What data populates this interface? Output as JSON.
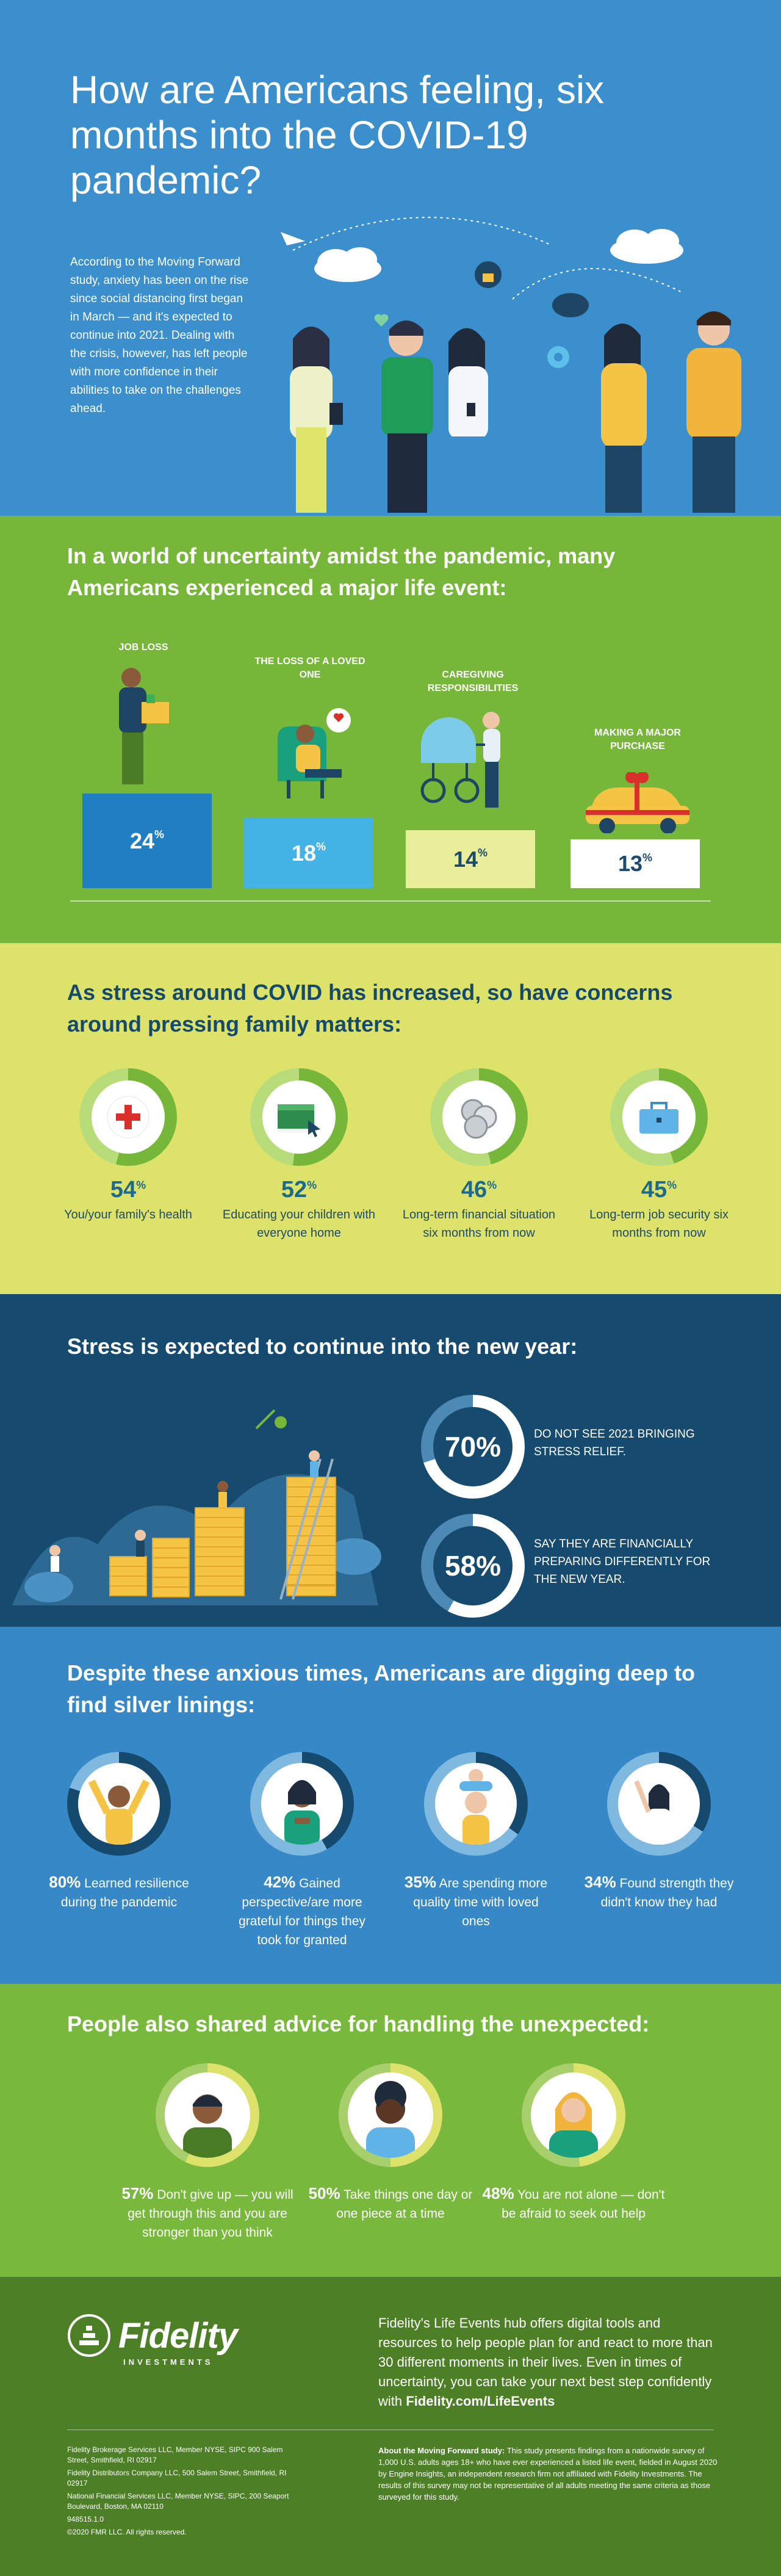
{
  "hero": {
    "title": "How are Americans feeling, six months into the COVID-19 pandemic?",
    "intro": "According to the Moving Forward study, anxiety has been on the rise since social distancing first began in March — and it's expected to continue into 2021. Dealing with the crisis, however, has left people with more confidence in their abilities to take on the challenges ahead."
  },
  "events": {
    "title_plain": "In a world of uncertainty amidst the pandemic, ",
    "title_bold": "many Americans experienced a major life event:",
    "items": [
      {
        "label": "JOB LOSS",
        "value": "24",
        "unit": "%"
      },
      {
        "label": "THE LOSS OF A LOVED ONE",
        "value": "18",
        "unit": "%"
      },
      {
        "label": "CAREGIVING RESPONSIBILITIES",
        "value": "14",
        "unit": "%"
      },
      {
        "label": "MAKING A MAJOR PURCHASE",
        "value": "13",
        "unit": "%"
      }
    ]
  },
  "concerns": {
    "title_plain": "As stress around COVID has increased, ",
    "title_bold": "so have concerns around pressing family matters:",
    "items": [
      {
        "value": "54",
        "unit": "%",
        "desc": "You/your family's health",
        "icon": "health-cross-icon"
      },
      {
        "value": "52",
        "unit": "%",
        "desc": "Educating your children with everyone home",
        "icon": "book-icon"
      },
      {
        "value": "46",
        "unit": "%",
        "desc": "Long-term financial situation six months from now",
        "icon": "coins-icon"
      },
      {
        "value": "45",
        "unit": "%",
        "desc": "Long-term job security six months from now",
        "icon": "briefcase-icon"
      }
    ]
  },
  "newyear": {
    "title_plain": "Stress is expected to continue ",
    "title_bold": "into the new year:",
    "stats": [
      {
        "value": "70%",
        "text": "DO NOT SEE 2021 BRINGING STRESS RELIEF."
      },
      {
        "value": "58%",
        "text": "SAY THEY ARE FINANCIALLY PREPARING DIFFERENTLY FOR THE NEW YEAR."
      }
    ]
  },
  "silver": {
    "title_plain": "Despite these anxious times, ",
    "title_bold": "Americans are digging deep to find silver linings:",
    "items": [
      {
        "value": "80%",
        "desc": "Learned resilience during the pandemic"
      },
      {
        "value": "42%",
        "desc": "Gained perspective/are more grateful for things they took for granted"
      },
      {
        "value": "35%",
        "desc": "Are spending more quality time with loved ones"
      },
      {
        "value": "34%",
        "desc": "Found strength they didn't know they had"
      }
    ]
  },
  "advice": {
    "title_plain": "People also shared ",
    "title_bold": "advice for handling the unexpected:",
    "items": [
      {
        "value": "57%",
        "desc": "Don't give up — you will get through this and you are stronger than you think"
      },
      {
        "value": "50%",
        "desc": "Take things one day or one piece at a time"
      },
      {
        "value": "48%",
        "desc": "You are not alone — don't be afraid to seek out help"
      }
    ]
  },
  "footer": {
    "logo_word": "Fidelity",
    "logo_sub": "INVESTMENTS",
    "blurb_plain": "Fidelity's Life Events hub offers digital tools and resources to help people plan for and react to more than 30 different moments in their lives. Even in times of uncertainty, you can take your next best step confidently with ",
    "blurb_link": "Fidelity.com/LifeEvents",
    "legal": [
      "Fidelity Brokerage Services LLC, Member NYSE, SIPC 900 Salem Street, Smithfield, RI 02917",
      "Fidelity Distributors Company LLC, 500 Salem Street, Smithfield, RI 02917",
      "National Financial Services LLC, Member NYSE, SIPC, 200 Seaport Boulevard, Boston, MA 02110",
      "948515.1.0",
      "©2020 FMR LLC. All rights reserved."
    ],
    "about_title": "About the Moving Forward study:",
    "about_text": " This study presents findings from a nationwide survey of 1,000 U.S. adults ages 18+ who have ever experienced a listed life event, fielded in August 2020 by Engine Insights, an independent research firm not affiliated with Fidelity Investments. The results of this survey may not be representative of all adults meeting the same criteria as those surveyed for this study."
  },
  "colors": {
    "hero_bg": "#3a8fcc",
    "green": "#76b73a",
    "lime": "#dde36a",
    "navy": "#164b6f",
    "blue": "#3688c6",
    "footer_green": "#4d7f27",
    "bar_blue": "#1f7fc2",
    "bar_light_blue": "#44b3e6",
    "bar_pale": "#e8ee9a",
    "bar_white": "#ffffff"
  }
}
